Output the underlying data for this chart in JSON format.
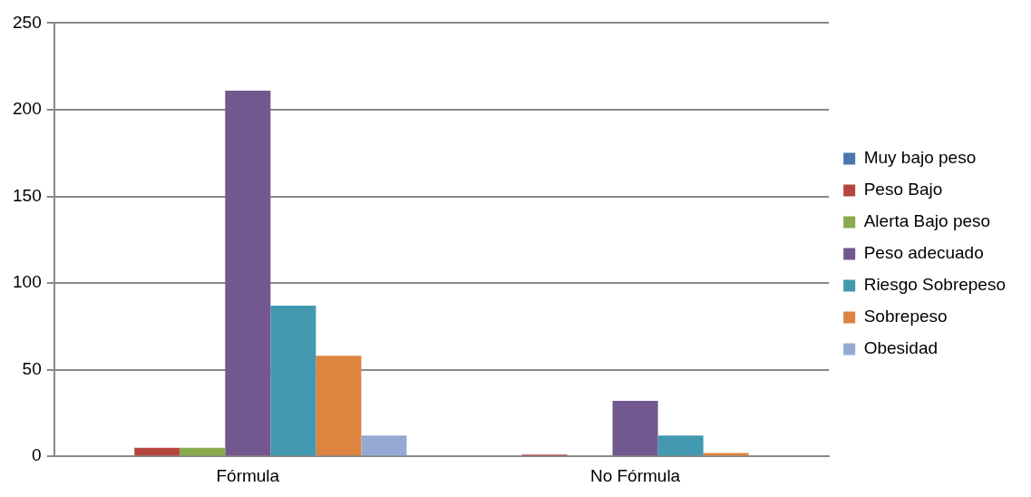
{
  "chart_data": {
    "type": "bar",
    "categories": [
      "Fórmula",
      "No Fórmula"
    ],
    "series": [
      {
        "name": "Muy bajo peso",
        "color": "#4a76ad",
        "values": [
          0,
          0
        ]
      },
      {
        "name": "Peso Bajo",
        "color": "#b5463f",
        "values": [
          5,
          1
        ]
      },
      {
        "name": "Alerta Bajo peso",
        "color": "#8aab4c",
        "values": [
          5,
          0
        ]
      },
      {
        "name": "Peso adecuado",
        "color": "#72588f",
        "values": [
          211,
          32
        ]
      },
      {
        "name": "Riesgo Sobrepeso",
        "color": "#4299b0",
        "values": [
          87,
          12
        ]
      },
      {
        "name": "Sobrepeso",
        "color": "#dd8440",
        "values": [
          58,
          2
        ]
      },
      {
        "name": "Obesidad",
        "color": "#94aad3",
        "values": [
          12,
          0
        ]
      }
    ],
    "ylim": [
      0,
      250
    ],
    "yticks": [
      0,
      50,
      100,
      150,
      200,
      250
    ],
    "grid": "y",
    "legend": "right"
  }
}
